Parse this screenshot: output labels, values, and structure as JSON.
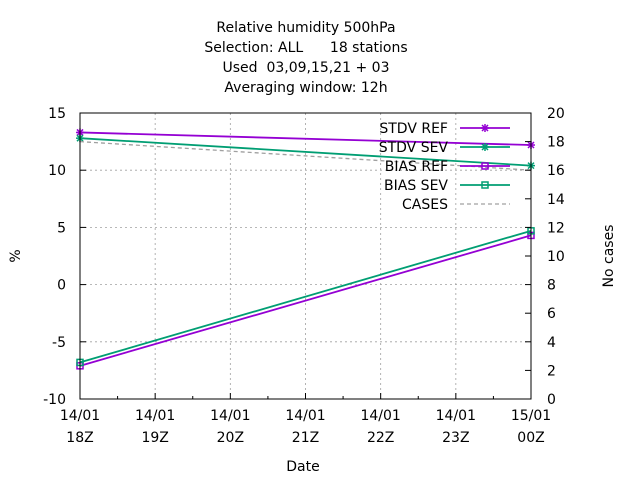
{
  "chart_data": {
    "type": "line",
    "title_lines": [
      "Relative humidity 500hPa",
      "Selection: ALL      18 stations",
      "Used  03,09,15,21 + 03",
      "Averaging window: 12h"
    ],
    "xlabel": "Date",
    "ylabel": "%",
    "y2label": "No cases",
    "x_ticks": [
      {
        "line1": "14/01",
        "line2": "18Z"
      },
      {
        "line1": "14/01",
        "line2": "19Z"
      },
      {
        "line1": "14/01",
        "line2": "20Z"
      },
      {
        "line1": "14/01",
        "line2": "21Z"
      },
      {
        "line1": "14/01",
        "line2": "22Z"
      },
      {
        "line1": "14/01",
        "line2": "23Z"
      },
      {
        "line1": "15/01",
        "line2": "00Z"
      }
    ],
    "x_range": [
      "14/01 18Z",
      "15/01 00Z"
    ],
    "ylim": [
      -10,
      15
    ],
    "y_ticks": [
      -10,
      -5,
      0,
      5,
      10,
      15
    ],
    "y2lim": [
      0,
      20
    ],
    "y2_ticks": [
      0,
      2,
      4,
      6,
      8,
      10,
      12,
      14,
      16,
      18,
      20
    ],
    "grid": true,
    "legend_position": "top-right",
    "series": [
      {
        "name": "STDV REF",
        "axis": "y",
        "color": "#9400d3",
        "marker": "star",
        "dash": "solid",
        "x": [
          "14/01 18Z",
          "15/01 00Z"
        ],
        "values": [
          13.3,
          12.2
        ]
      },
      {
        "name": "STDV SEV",
        "axis": "y",
        "color": "#009e73",
        "marker": "star",
        "dash": "solid",
        "x": [
          "14/01 18Z",
          "15/01 00Z"
        ],
        "values": [
          12.8,
          10.4
        ]
      },
      {
        "name": "BIAS REF",
        "axis": "y",
        "color": "#9400d3",
        "marker": "square",
        "dash": "solid",
        "x": [
          "14/01 18Z",
          "15/01 00Z"
        ],
        "values": [
          -7.1,
          4.3
        ]
      },
      {
        "name": "BIAS SEV",
        "axis": "y",
        "color": "#009e73",
        "marker": "square",
        "dash": "solid",
        "x": [
          "14/01 18Z",
          "15/01 00Z"
        ],
        "values": [
          -6.8,
          4.7
        ]
      },
      {
        "name": "CASES",
        "axis": "y2",
        "color": "#a0a0a0",
        "marker": "none",
        "dash": "dashed",
        "x": [
          "14/01 18Z",
          "15/01 00Z"
        ],
        "values": [
          18,
          16
        ]
      }
    ]
  }
}
